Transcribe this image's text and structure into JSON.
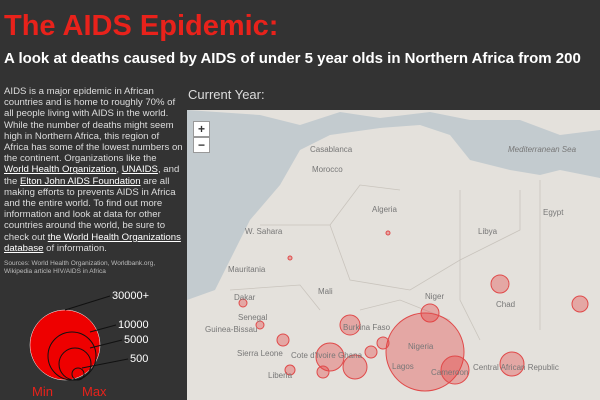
{
  "header": {
    "title": "The AIDS Epidemic:",
    "subtitle": "A look at deaths caused by AIDS of under 5 year olds in Northern Africa from 200"
  },
  "sidebar": {
    "paragraph": [
      "AIDS is a major epidemic in African countries and is home to roughly 70% of all people living with AIDS in the world. While the number of deaths might seem high in Northern Africa, this region of Africa has some of the lowest numbers on the continent. Organizations like the ",
      "World Health Organization",
      ", ",
      "UNAIDS",
      ", and the ",
      "Elton John AIDS Foundation",
      " are all making efforts to prevents AIDS in Africa and the entire world. To find out more information and look at data for other countries around the world, be sure to check out ",
      "the World Health Organizations database",
      " of information."
    ],
    "sources": "Sources: World Health Organization, Worldbank.org, Wikipedia article HIV/AIDS in Africa",
    "legend": {
      "labels": [
        "30000+",
        "10000",
        "5000",
        "500"
      ],
      "min": "Min",
      "max": "Max"
    }
  },
  "map": {
    "current_year": "Current Year:",
    "zoom_in": "+",
    "zoom_out": "−",
    "labels": [
      "Casablanca",
      "Morocco",
      "Algeria",
      "Mediterranean Sea",
      "Egypt",
      "Libya",
      "W. Sahara",
      "Mauritania",
      "Mali",
      "Niger",
      "Chad",
      "Dakar",
      "Senegal",
      "Guinea-Bissau",
      "Burkina Faso",
      "Sierra Leone",
      "Cote d'Ivoire",
      "Ghana",
      "Nigeria",
      "Lagos",
      "Cameroon",
      "Central African Republic",
      "Liberia"
    ]
  }
}
